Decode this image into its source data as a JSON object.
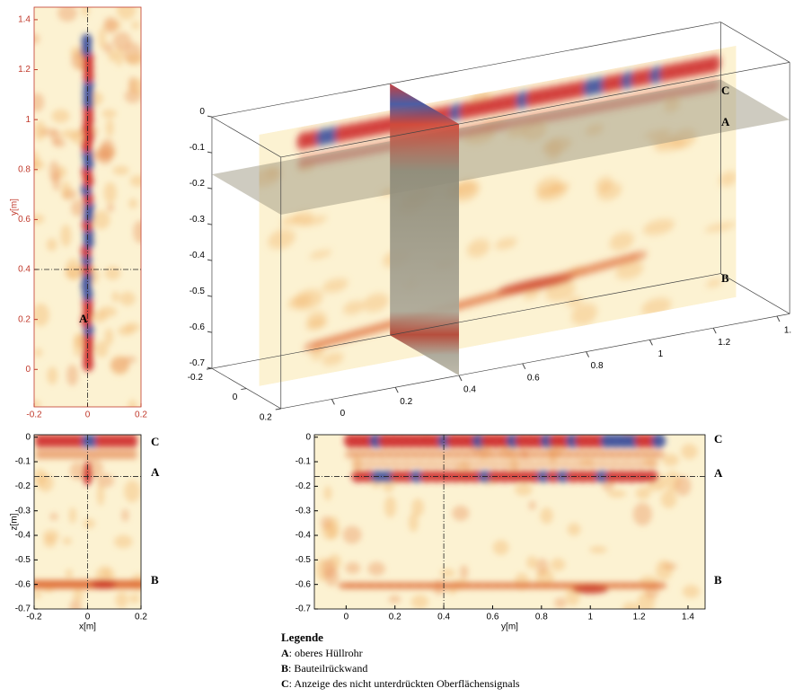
{
  "chart_data": [
    {
      "type": "heatmap",
      "xlim": [
        -0.2,
        0.2
      ],
      "xticks": [
        -0.2,
        0,
        0.2
      ],
      "ylim": [
        -0.15,
        1.45
      ],
      "yticks": [
        0,
        0.2,
        0.4,
        0.6,
        0.8,
        1,
        1.2,
        1.4
      ],
      "ylabel": "y[m]",
      "axis_color": "#c0392b",
      "crosshair": {
        "x": 0,
        "y": 0.4
      },
      "annotations": [
        "A"
      ]
    },
    {
      "type": "heatmap3d",
      "xlim": [
        -0.2,
        0.2
      ],
      "xticks": [
        -0.2,
        0,
        0.2
      ],
      "ylim": [
        -0.16,
        1.44
      ],
      "yticks": [
        0,
        0.2,
        0.4,
        0.6,
        0.8,
        1,
        1.2,
        {
          "value": 1.4,
          "label": "1."
        }
      ],
      "zlim": [
        -0.7,
        0
      ],
      "zticks": [
        0,
        -0.1,
        -0.2,
        -0.3,
        -0.4,
        -0.5,
        -0.6,
        -0.7
      ],
      "crosshair": {
        "x": 0,
        "y": 0.4,
        "z": -0.16
      },
      "annotations": [
        "C",
        "A",
        "B"
      ]
    },
    {
      "type": "heatmap",
      "xlim": [
        -0.2,
        0.2
      ],
      "xticks": [
        -0.2,
        0,
        0.2
      ],
      "ylim": [
        -0.7,
        0.01
      ],
      "yticks": [
        0,
        -0.1,
        -0.2,
        -0.3,
        -0.4,
        -0.5,
        -0.6,
        -0.7
      ],
      "xlabel": "x[m]",
      "ylabel": "z[m]",
      "crosshair": {
        "x": 0,
        "y": -0.16
      },
      "annotations": [
        "C",
        "A",
        "B"
      ]
    },
    {
      "type": "heatmap",
      "xlim": [
        -0.13,
        1.47
      ],
      "xticks": [
        0,
        0.2,
        0.4,
        0.6,
        0.8,
        1,
        1.2,
        1.4
      ],
      "ylim": [
        -0.7,
        0.01
      ],
      "yticks": [
        0,
        -0.1,
        -0.2,
        -0.3,
        -0.4,
        -0.5,
        -0.6,
        -0.7
      ],
      "xlabel": "y[m]",
      "crosshair": {
        "x": 0.4,
        "y": -0.16
      },
      "annotations": [
        "C",
        "A",
        "B"
      ]
    }
  ],
  "legend": {
    "title": "Legende",
    "items": [
      {
        "key": "A",
        "text": ": oberes Hüllrohr"
      },
      {
        "key": "B",
        "text": ": Bauteilrückwand"
      },
      {
        "key": "C",
        "text": ": Anzeige des nicht unterdrückten Oberflächensignals"
      }
    ]
  }
}
